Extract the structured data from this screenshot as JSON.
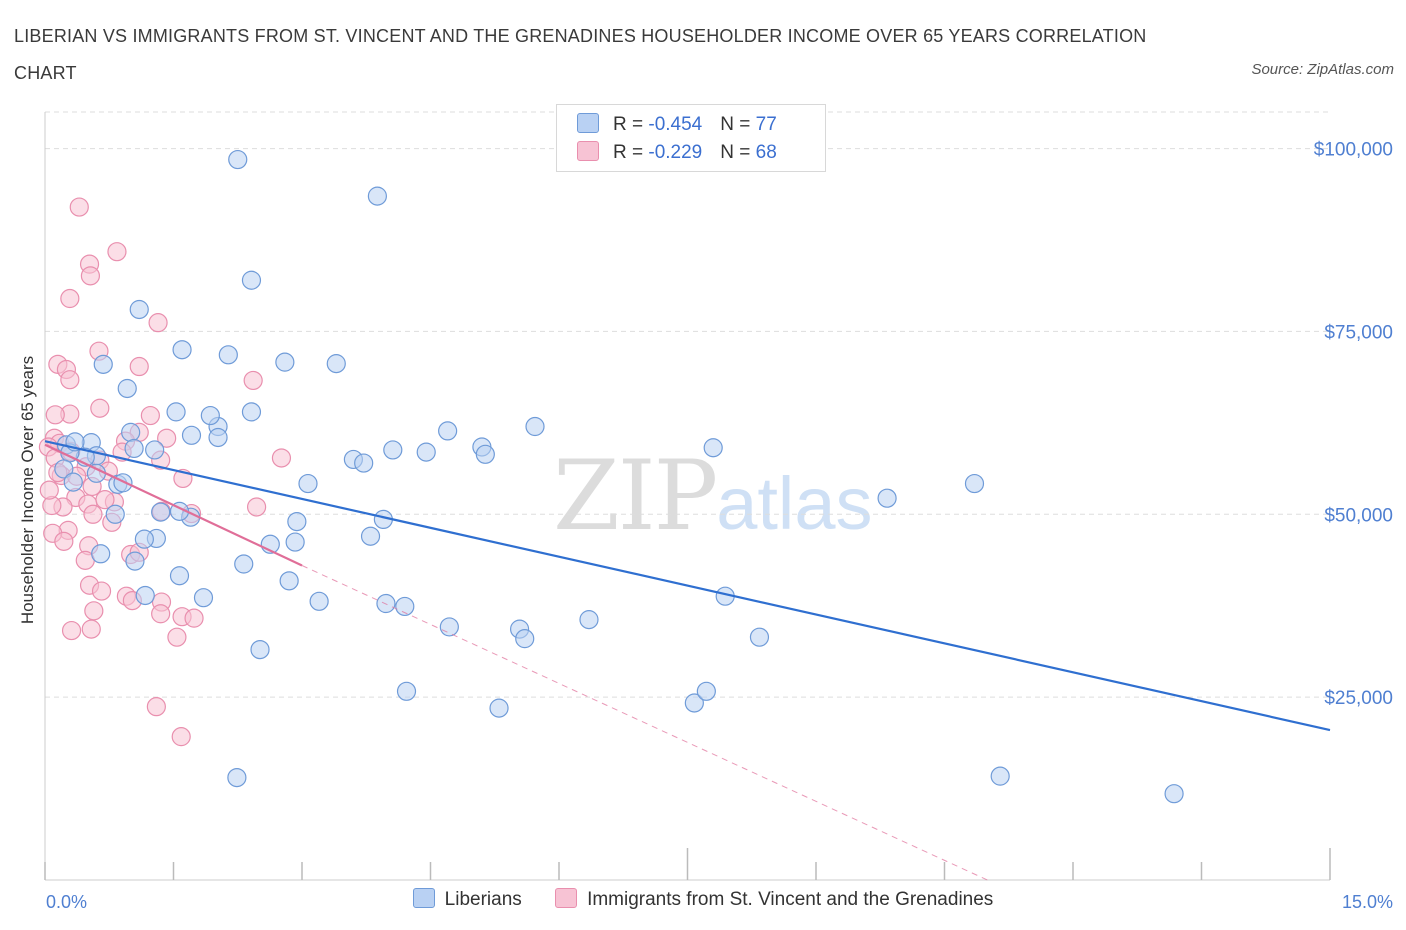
{
  "title": "LIBERIAN VS IMMIGRANTS FROM ST. VINCENT AND THE GRENADINES HOUSEHOLDER INCOME OVER 65 YEARS CORRELATION CHART",
  "source": "Source: ZipAtlas.com",
  "watermark": {
    "zip": "ZIP",
    "atlas": "atlas"
  },
  "legend": {
    "r_label": "R = ",
    "n_label": "N = ",
    "rows": [
      {
        "r": "-0.454",
        "n": "77"
      },
      {
        "r": "-0.229",
        "n": "68"
      }
    ]
  },
  "colors": {
    "blue_fill": "#b9d1f3",
    "blue_stroke": "#6f9bd8",
    "blue_line": "#2f6fd0",
    "pink_fill": "#f7c3d4",
    "pink_stroke": "#e98fae",
    "pink_line": "#e06e98",
    "tick_text": "#4f7fd1",
    "grid": "#dddddd"
  },
  "chart_data": {
    "type": "scatter",
    "title": "LIBERIAN VS IMMIGRANTS FROM ST. VINCENT AND THE GRENADINES HOUSEHOLDER INCOME OVER 65 YEARS CORRELATION CHART",
    "xlabel": "",
    "ylabel": "Householder Income Over 65 years",
    "xlim": [
      0,
      15
    ],
    "ylim": [
      0,
      105000
    ],
    "x_tick_labels": [
      "0.0%",
      "15.0%"
    ],
    "y_ticks": [
      25000,
      50000,
      75000,
      100000
    ],
    "y_tick_labels": [
      "$25,000",
      "$50,000",
      "$75,000",
      "$100,000"
    ],
    "grid": true,
    "legend_position": "bottom",
    "series": [
      {
        "name": "Liberians",
        "r": -0.454,
        "n": 77,
        "trend": {
          "x": [
            0.0,
            15.0
          ],
          "y": [
            60000,
            20500
          ]
        },
        "points": [
          [
            2.25,
            98500
          ],
          [
            3.88,
            93500
          ],
          [
            2.41,
            82000
          ],
          [
            1.1,
            78000
          ],
          [
            1.6,
            72500
          ],
          [
            2.14,
            71800
          ],
          [
            2.8,
            70800
          ],
          [
            3.4,
            70600
          ],
          [
            0.68,
            70500
          ],
          [
            0.96,
            67200
          ],
          [
            1.53,
            64000
          ],
          [
            2.02,
            62000
          ],
          [
            1.71,
            60800
          ],
          [
            1.93,
            63500
          ],
          [
            2.41,
            64000
          ],
          [
            2.02,
            60500
          ],
          [
            1.0,
            61200
          ],
          [
            0.54,
            59800
          ],
          [
            0.25,
            59500
          ],
          [
            0.6,
            58000
          ],
          [
            0.47,
            57800
          ],
          [
            0.29,
            58400
          ],
          [
            1.28,
            58800
          ],
          [
            1.04,
            59000
          ],
          [
            3.6,
            57500
          ],
          [
            3.72,
            57000
          ],
          [
            4.06,
            58800
          ],
          [
            4.45,
            58500
          ],
          [
            4.7,
            61400
          ],
          [
            5.1,
            59200
          ],
          [
            5.14,
            58200
          ],
          [
            5.72,
            62000
          ],
          [
            7.8,
            59100
          ],
          [
            0.22,
            56200
          ],
          [
            0.33,
            54400
          ],
          [
            0.85,
            54100
          ],
          [
            0.91,
            54300
          ],
          [
            3.07,
            54200
          ],
          [
            9.83,
            52200
          ],
          [
            10.85,
            54200
          ],
          [
            0.82,
            50000
          ],
          [
            1.35,
            50300
          ],
          [
            1.7,
            49600
          ],
          [
            2.94,
            49000
          ],
          [
            3.95,
            49300
          ],
          [
            3.8,
            47000
          ],
          [
            1.3,
            46700
          ],
          [
            2.63,
            45900
          ],
          [
            2.92,
            46200
          ],
          [
            0.65,
            44600
          ],
          [
            1.05,
            43600
          ],
          [
            2.32,
            43200
          ],
          [
            1.57,
            41600
          ],
          [
            2.85,
            40900
          ],
          [
            1.17,
            38900
          ],
          [
            1.85,
            38600
          ],
          [
            3.2,
            38100
          ],
          [
            3.98,
            37800
          ],
          [
            4.2,
            37400
          ],
          [
            4.72,
            34600
          ],
          [
            5.54,
            34300
          ],
          [
            5.6,
            33000
          ],
          [
            6.35,
            35600
          ],
          [
            7.94,
            38800
          ],
          [
            8.34,
            33200
          ],
          [
            2.51,
            31500
          ],
          [
            4.22,
            25800
          ],
          [
            5.3,
            23500
          ],
          [
            7.58,
            24200
          ],
          [
            7.72,
            25800
          ],
          [
            2.24,
            14000
          ],
          [
            11.15,
            14200
          ],
          [
            13.18,
            11800
          ],
          [
            0.35,
            59900
          ],
          [
            0.6,
            55600
          ],
          [
            1.16,
            46600
          ],
          [
            1.57,
            50400
          ]
        ]
      },
      {
        "name": "Immigrants from St. Vincent and the Grenadines",
        "r": -0.229,
        "n": 68,
        "trend": {
          "x": [
            0.0,
            3.0
          ],
          "y": [
            59500,
            43000
          ]
        },
        "trend_dashed": {
          "x": [
            3.0,
            11.0
          ],
          "y": [
            43000,
            0
          ]
        },
        "points": [
          [
            0.4,
            92000
          ],
          [
            0.84,
            85900
          ],
          [
            0.52,
            84200
          ],
          [
            0.53,
            82600
          ],
          [
            0.29,
            79500
          ],
          [
            1.32,
            76200
          ],
          [
            0.63,
            72300
          ],
          [
            0.15,
            70500
          ],
          [
            1.1,
            70200
          ],
          [
            0.25,
            69800
          ],
          [
            2.43,
            68300
          ],
          [
            0.29,
            68400
          ],
          [
            0.64,
            64500
          ],
          [
            1.23,
            63500
          ],
          [
            0.29,
            63700
          ],
          [
            0.12,
            63600
          ],
          [
            1.1,
            61200
          ],
          [
            0.94,
            60000
          ],
          [
            0.11,
            60400
          ],
          [
            0.17,
            59700
          ],
          [
            0.04,
            59200
          ],
          [
            0.12,
            57700
          ],
          [
            1.35,
            57400
          ],
          [
            0.64,
            57400
          ],
          [
            0.48,
            56500
          ],
          [
            0.19,
            55300
          ],
          [
            1.61,
            54900
          ],
          [
            0.74,
            55900
          ],
          [
            0.55,
            53800
          ],
          [
            0.36,
            52300
          ],
          [
            0.21,
            51000
          ],
          [
            0.5,
            51400
          ],
          [
            0.81,
            51700
          ],
          [
            0.08,
            51200
          ],
          [
            2.47,
            51000
          ],
          [
            0.56,
            50000
          ],
          [
            1.36,
            50400
          ],
          [
            1.71,
            50100
          ],
          [
            0.27,
            47800
          ],
          [
            0.09,
            47400
          ],
          [
            0.78,
            48900
          ],
          [
            0.51,
            45700
          ],
          [
            1.0,
            44500
          ],
          [
            0.47,
            43700
          ],
          [
            0.52,
            40300
          ],
          [
            0.66,
            39500
          ],
          [
            0.95,
            38800
          ],
          [
            1.02,
            38200
          ],
          [
            1.36,
            38000
          ],
          [
            0.57,
            36800
          ],
          [
            1.35,
            36400
          ],
          [
            1.6,
            36000
          ],
          [
            1.74,
            35800
          ],
          [
            0.31,
            34100
          ],
          [
            0.54,
            34300
          ],
          [
            1.54,
            33200
          ],
          [
            1.3,
            23700
          ],
          [
            1.59,
            19600
          ],
          [
            2.76,
            57700
          ],
          [
            0.15,
            55700
          ],
          [
            0.22,
            46300
          ],
          [
            0.37,
            55200
          ],
          [
            0.9,
            58500
          ],
          [
            1.1,
            44800
          ],
          [
            0.7,
            52000
          ],
          [
            0.05,
            53300
          ],
          [
            1.42,
            60400
          ],
          [
            0.3,
            58600
          ]
        ]
      }
    ]
  }
}
